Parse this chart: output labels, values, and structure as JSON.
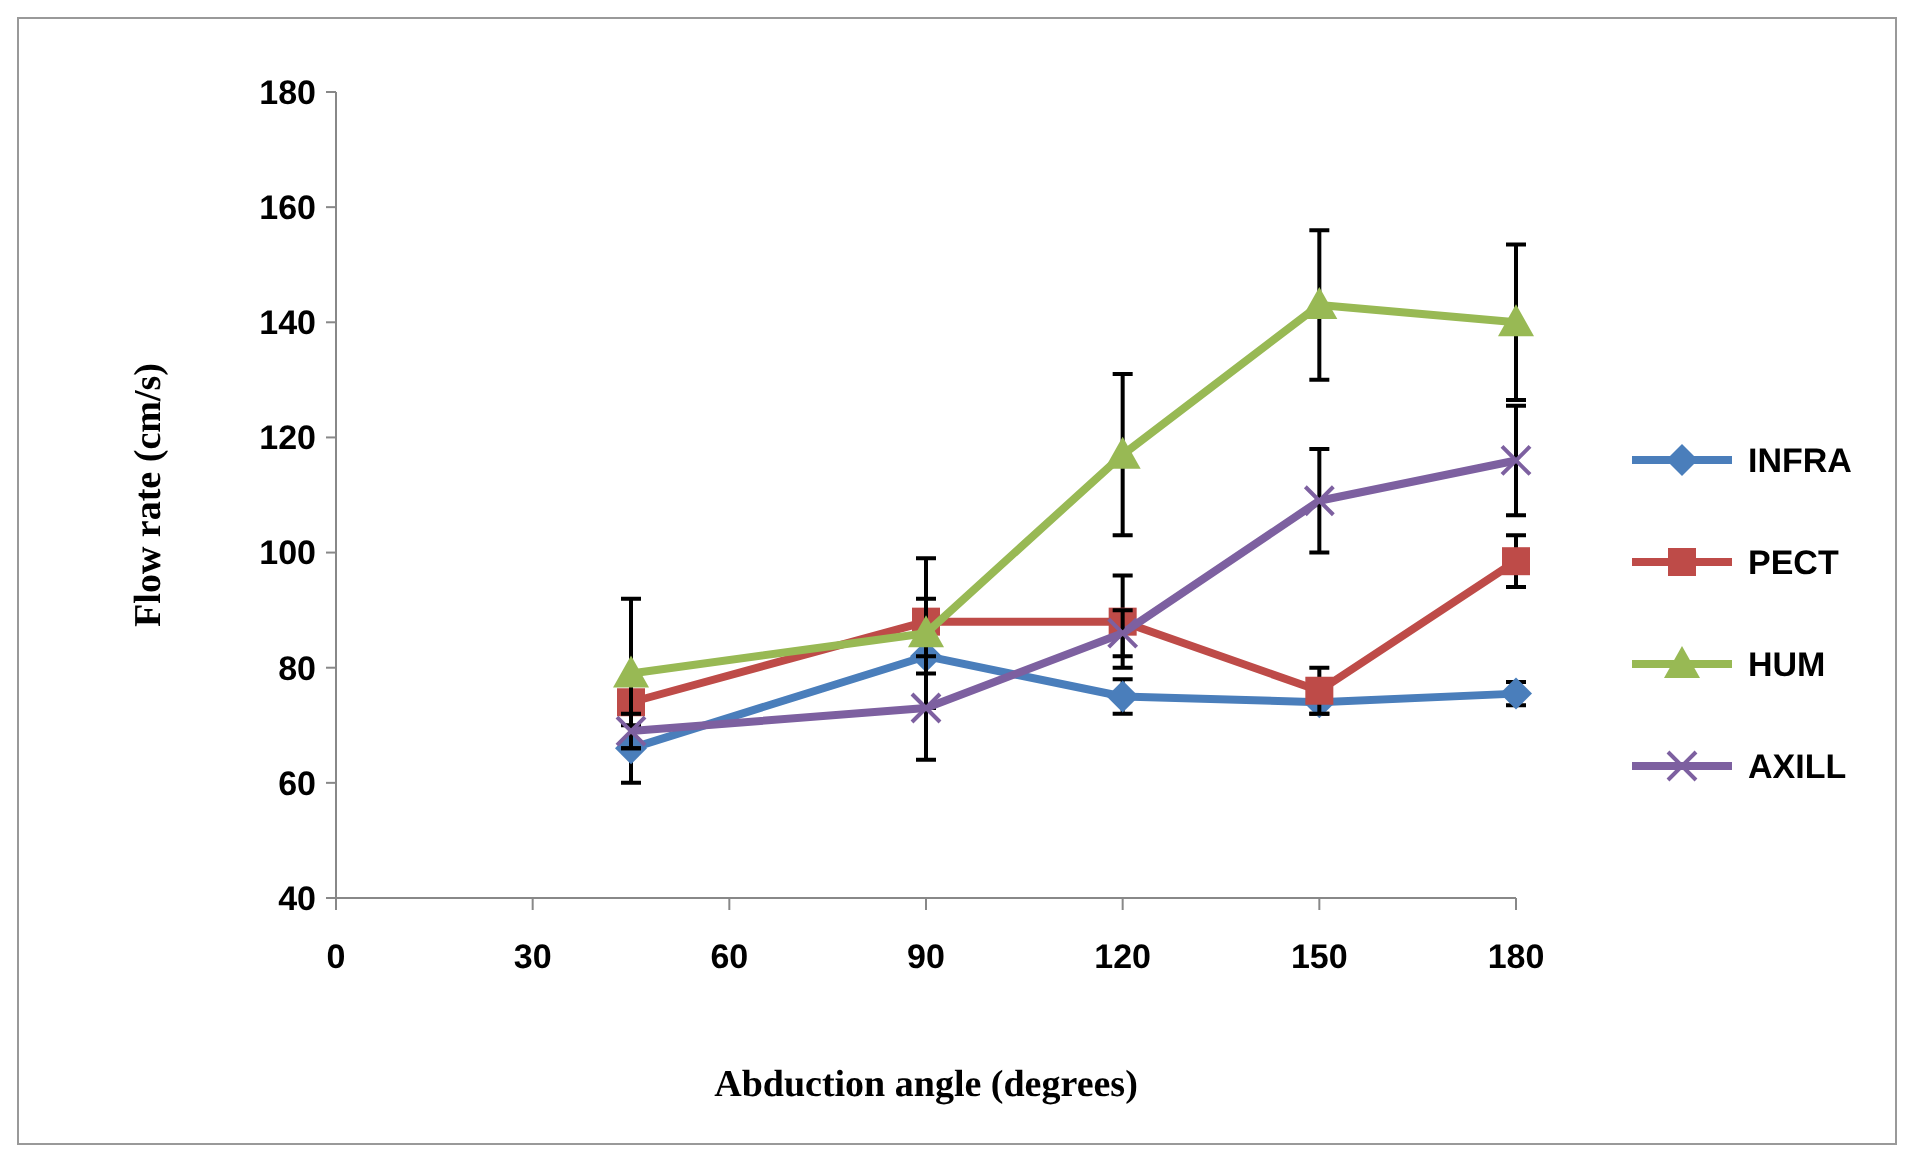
{
  "chart_data": {
    "type": "line",
    "xlabel": "Abduction angle (degrees)",
    "ylabel": "Flow rate (cm/s)",
    "x": [
      45,
      90,
      120,
      150,
      180
    ],
    "xlim": [
      0,
      180
    ],
    "xticks": [
      0,
      30,
      60,
      90,
      120,
      150,
      180
    ],
    "ylim": [
      40,
      180
    ],
    "yticks": [
      40,
      60,
      80,
      100,
      120,
      140,
      160,
      180
    ],
    "grid": false,
    "legend": "right",
    "line_style": "solid",
    "series": [
      {
        "name": "INFRA",
        "color": "#4a7ebb",
        "marker": "diamond",
        "values": [
          66,
          82,
          75,
          74,
          75.5
        ],
        "errors": [
          6,
          3,
          3,
          2,
          2
        ]
      },
      {
        "name": "PECT",
        "color": "#be4b48",
        "marker": "square",
        "values": [
          74,
          88,
          88,
          76,
          98.5
        ],
        "errors": [
          4,
          4,
          8,
          4,
          4.5
        ]
      },
      {
        "name": "HUM",
        "color": "#98b954",
        "marker": "triangle",
        "values": [
          79,
          86,
          117,
          143,
          140
        ],
        "errors": [
          13,
          13,
          14,
          13,
          13.5
        ]
      },
      {
        "name": "AXILL",
        "color": "#7d60a0",
        "marker": "cross",
        "values": [
          69,
          73,
          86,
          109,
          116
        ],
        "errors": [
          3,
          9,
          4,
          9,
          9.5
        ]
      }
    ]
  }
}
